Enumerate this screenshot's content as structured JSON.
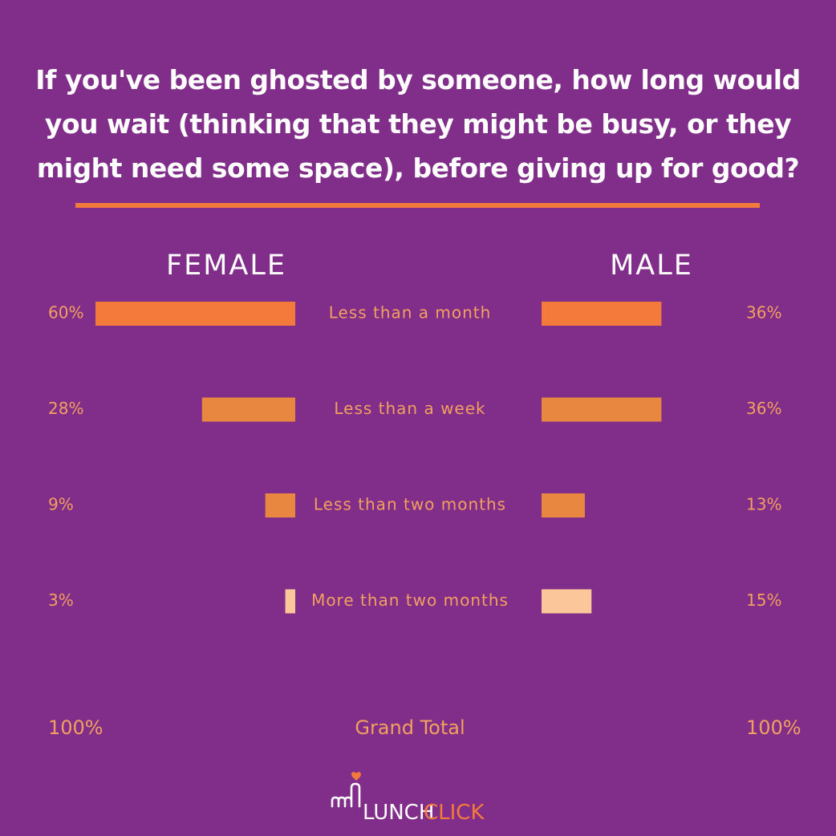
{
  "title": "If you've been ghosted by someone, how long would you wait (thinking that they might be busy, or they might need some space), before giving up for good?",
  "chart_data": {
    "type": "bar",
    "orientation": "horizontal-butterfly",
    "categories": [
      "Less than a month",
      "Less than a week",
      "Less than two months",
      "More than two months"
    ],
    "series": [
      {
        "name": "FEMALE",
        "values": [
          60,
          28,
          9,
          3
        ],
        "labels": [
          "60%",
          "28%",
          "9%",
          "3%"
        ]
      },
      {
        "name": "MALE",
        "values": [
          36,
          36,
          13,
          15
        ],
        "labels": [
          "36%",
          "36%",
          "13%",
          "15%"
        ]
      }
    ],
    "bar_colors": [
      "#f47a3c",
      "#e8873f",
      "#e8873f",
      "#fbc79a"
    ],
    "total": {
      "label": "Grand Total",
      "female": "100%",
      "male": "100%"
    }
  },
  "colors": {
    "background": "#812d8a",
    "accent": "#f47a3c",
    "label_text": "#f2a05f",
    "white": "#ffffff"
  },
  "logo": {
    "text_lunch": "LUNCH",
    "text_click": "CLICK",
    "icon": "heart-hand-icon"
  }
}
